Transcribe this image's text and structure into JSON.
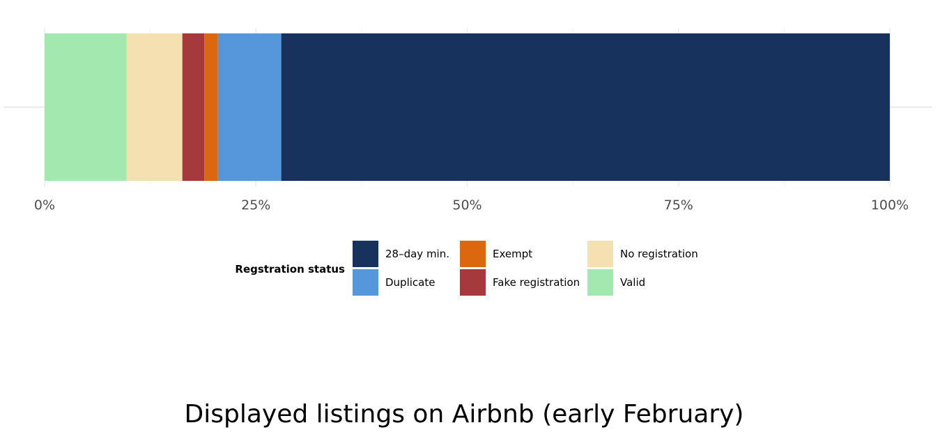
{
  "chart_data": {
    "type": "bar",
    "orientation": "horizontal",
    "stacked": true,
    "normalized": true,
    "title": "Displayed listings on Airbnb (early February)",
    "xlabel": "",
    "ylabel": "",
    "xlim": [
      0,
      100
    ],
    "x_ticks": [
      "0%",
      "25%",
      "50%",
      "75%",
      "100%"
    ],
    "grid": true,
    "legend_position": "bottom",
    "legend_title": "Regstration status",
    "series": [
      {
        "name": "Valid",
        "value": 9.7,
        "color": "#a3e8ae"
      },
      {
        "name": "No registration",
        "value": 6.6,
        "color": "#f4e0b0"
      },
      {
        "name": "Fake registration",
        "value": 2.6,
        "color": "#a5393c"
      },
      {
        "name": "Exempt",
        "value": 1.6,
        "color": "#db680e"
      },
      {
        "name": "Duplicate",
        "value": 7.5,
        "color": "#5597da"
      },
      {
        "name": "28–day min.",
        "value": 72.0,
        "color": "#17325c"
      }
    ],
    "legend_order": [
      "28–day min.",
      "Duplicate",
      "Exempt",
      "Fake registration",
      "No registration",
      "Valid"
    ]
  }
}
